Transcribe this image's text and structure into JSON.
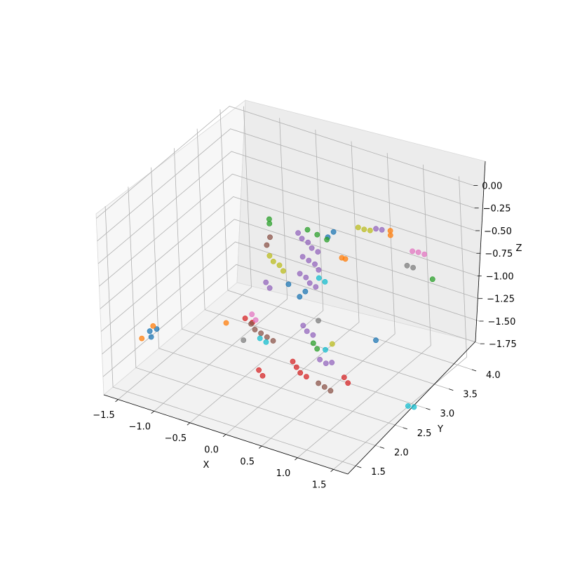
{
  "chart_data": {
    "type": "scatter",
    "projection": "3d",
    "title": "",
    "xlabel": "X",
    "ylabel": "Y",
    "zlabel": "Z",
    "xlim": [
      -1.7,
      1.7
    ],
    "ylim": [
      1.3,
      4.2
    ],
    "zlim": [
      -1.95,
      0.05
    ],
    "grid": true,
    "xticks": [
      "−1.5",
      "−1.0",
      "−0.5",
      "0.0",
      "0.5",
      "1.0",
      "1.5"
    ],
    "yticks": [
      "1.5",
      "2.0",
      "2.5",
      "3.0",
      "3.5",
      "4.0"
    ],
    "zticks": [
      "0.00",
      "−0.25",
      "−0.50",
      "−0.75",
      "−1.00",
      "−1.25",
      "−1.50",
      "−1.75"
    ],
    "series": [
      {
        "color": "#1f77b4",
        "points": [
          [
            -1.55,
            2.1,
            -1.55
          ],
          [
            -1.45,
            2.1,
            -1.5
          ],
          [
            -1.5,
            2.05,
            -1.58
          ],
          [
            0.05,
            2.9,
            -1.1
          ],
          [
            0.1,
            2.95,
            -1.05
          ],
          [
            -0.1,
            2.9,
            -1.0
          ],
          [
            0.35,
            3.1,
            -0.45
          ],
          [
            0.4,
            3.15,
            -0.4
          ],
          [
            1.0,
            3.05,
            -1.4
          ]
        ]
      },
      {
        "color": "#ff7f0e",
        "points": [
          [
            -1.6,
            2.0,
            -1.6
          ],
          [
            -1.5,
            2.1,
            -1.48
          ],
          [
            0.9,
            3.6,
            -0.45
          ],
          [
            0.9,
            3.6,
            -0.5
          ],
          [
            0.4,
            3.3,
            -0.75
          ],
          [
            0.45,
            3.3,
            -0.75
          ],
          [
            -0.6,
            2.3,
            -1.3
          ]
        ]
      },
      {
        "color": "#2ca02c",
        "points": [
          [
            -0.4,
            3.0,
            -0.4
          ],
          [
            -0.4,
            3.0,
            -0.45
          ],
          [
            0.0,
            3.2,
            -0.5
          ],
          [
            0.1,
            3.25,
            -0.55
          ],
          [
            0.2,
            3.3,
            -0.6
          ],
          [
            1.4,
            3.7,
            -0.9
          ],
          [
            0.35,
            2.7,
            -1.45
          ],
          [
            0.4,
            2.7,
            -1.5
          ]
        ]
      },
      {
        "color": "#d62728",
        "points": [
          [
            -0.8,
            3.0,
            -1.6
          ],
          [
            -0.7,
            3.0,
            -1.62
          ],
          [
            0.25,
            2.4,
            -1.55
          ],
          [
            0.3,
            2.4,
            -1.6
          ],
          [
            0.35,
            2.4,
            -1.65
          ],
          [
            0.4,
            2.45,
            -1.7
          ],
          [
            -0.1,
            2.2,
            -1.65
          ],
          [
            -0.05,
            2.2,
            -1.7
          ],
          [
            0.9,
            2.5,
            -1.6
          ],
          [
            0.95,
            2.5,
            -1.65
          ]
        ]
      },
      {
        "color": "#9467bd",
        "points": [
          [
            -0.35,
            2.8,
            -1.0
          ],
          [
            -0.3,
            2.8,
            -1.05
          ],
          [
            0.9,
            3.3,
            -0.3
          ],
          [
            0.95,
            3.35,
            -0.32
          ],
          [
            0.15,
            2.8,
            -1.35
          ],
          [
            0.2,
            2.8,
            -1.4
          ],
          [
            0.25,
            2.85,
            -1.45
          ],
          [
            0.5,
            2.6,
            -1.55
          ],
          [
            0.55,
            2.65,
            -1.6
          ],
          [
            0.6,
            2.7,
            -1.6
          ]
        ]
      },
      {
        "color": "#8c564b",
        "points": [
          [
            -0.45,
            2.6,
            -1.4
          ],
          [
            -0.4,
            2.6,
            -1.45
          ],
          [
            -0.35,
            2.65,
            -1.5
          ],
          [
            -0.3,
            2.7,
            -1.55
          ],
          [
            -0.25,
            2.75,
            -1.6
          ],
          [
            -0.4,
            3.0,
            -0.6
          ],
          [
            -0.45,
            3.0,
            -0.7
          ],
          [
            0.6,
            2.4,
            -1.7
          ],
          [
            0.65,
            2.45,
            -1.75
          ],
          [
            0.7,
            2.5,
            -1.8
          ]
        ]
      },
      {
        "color": "#e377c2",
        "points": [
          [
            1.2,
            3.6,
            -0.6
          ],
          [
            1.25,
            3.65,
            -0.62
          ],
          [
            1.3,
            3.7,
            -0.65
          ],
          [
            -0.5,
            2.7,
            -1.35
          ],
          [
            -0.45,
            2.7,
            -1.4
          ]
        ]
      },
      {
        "color": "#7f7f7f",
        "points": [
          [
            1.15,
            3.55,
            -0.75
          ],
          [
            1.2,
            3.6,
            -0.78
          ],
          [
            -0.5,
            2.5,
            -1.55
          ],
          [
            0.3,
            2.9,
            -1.3
          ]
        ]
      },
      {
        "color": "#bcbd22",
        "points": [
          [
            0.65,
            3.3,
            -0.35
          ],
          [
            0.7,
            3.35,
            -0.38
          ],
          [
            0.75,
            3.4,
            -0.4
          ],
          [
            -0.35,
            2.9,
            -0.75
          ],
          [
            -0.3,
            2.9,
            -0.8
          ],
          [
            -0.25,
            2.95,
            -0.85
          ],
          [
            -0.2,
            2.95,
            -0.9
          ],
          [
            0.55,
            2.8,
            -1.45
          ]
        ]
      },
      {
        "color": "#17becf",
        "points": [
          [
            1.55,
            2.85,
            -1.9
          ],
          [
            1.6,
            2.9,
            -1.92
          ],
          [
            0.3,
            2.95,
            -0.85
          ],
          [
            0.35,
            3.0,
            -0.9
          ],
          [
            -0.3,
            2.55,
            -1.5
          ],
          [
            -0.25,
            2.6,
            -1.55
          ],
          [
            0.55,
            2.65,
            -1.45
          ]
        ]
      },
      {
        "color": "#9467bd",
        "points": [
          [
            0.0,
            3.0,
            -0.45
          ],
          [
            0.05,
            3.0,
            -0.5
          ],
          [
            0.1,
            3.05,
            -0.55
          ],
          [
            0.15,
            3.05,
            -0.6
          ],
          [
            0.2,
            3.1,
            -0.65
          ],
          [
            0.05,
            3.0,
            -0.7
          ],
          [
            0.1,
            3.05,
            -0.75
          ],
          [
            0.15,
            3.1,
            -0.8
          ],
          [
            0.2,
            3.1,
            -0.85
          ],
          [
            0.0,
            3.0,
            -0.9
          ],
          [
            0.05,
            3.05,
            -0.95
          ],
          [
            0.1,
            3.05,
            -1.0
          ],
          [
            0.15,
            3.1,
            -1.05
          ]
        ]
      }
    ]
  }
}
